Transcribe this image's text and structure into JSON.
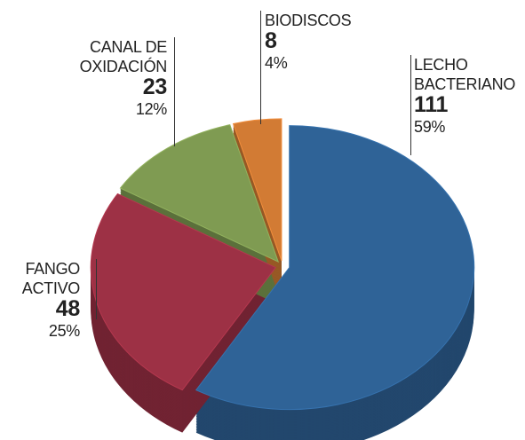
{
  "chart_data": {
    "type": "pie",
    "categories": [
      "LECHO BACTERIANO",
      "FANGO ACTIVO",
      "CANAL DE OXIDACIÓN",
      "BIODISCOS"
    ],
    "values": [
      111,
      48,
      23,
      8
    ],
    "percent_labels": [
      "59%",
      "25%",
      "12%",
      "4%"
    ],
    "colors": [
      "#2f6397",
      "#9d3145",
      "#7f9b52",
      "#d27b34"
    ]
  }
}
